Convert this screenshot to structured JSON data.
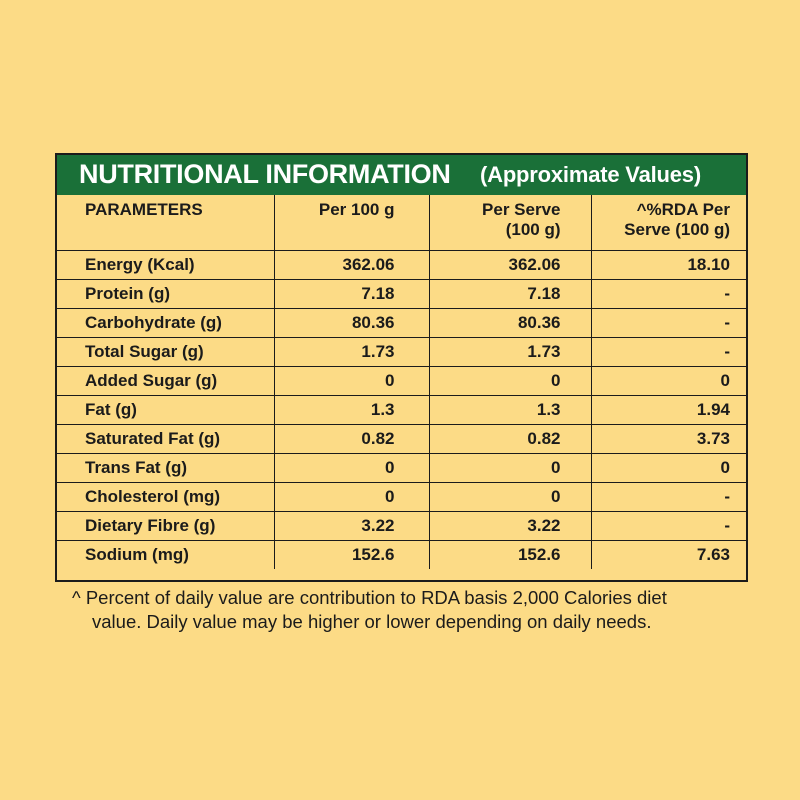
{
  "panel": {
    "title": "NUTRITIONAL INFORMATION",
    "subtitle": "(Approximate Values)"
  },
  "table": {
    "headers": {
      "parameters": "PARAMETERS",
      "per_100g": "Per 100 g",
      "per_serve_line1": "Per Serve",
      "per_serve_line2": "(100 g)",
      "rda_line1": "^%RDA Per",
      "rda_line2": "Serve (100 g)"
    },
    "rows": [
      {
        "param": "Energy (Kcal)",
        "per_100g": "362.06",
        "per_serve": "362.06",
        "rda": "18.10"
      },
      {
        "param": "Protein (g)",
        "per_100g": "7.18",
        "per_serve": "7.18",
        "rda": "-"
      },
      {
        "param": "Carbohydrate (g)",
        "per_100g": "80.36",
        "per_serve": "80.36",
        "rda": "-"
      },
      {
        "param": "Total Sugar (g)",
        "per_100g": "1.73",
        "per_serve": "1.73",
        "rda": "-"
      },
      {
        "param": "Added Sugar (g)",
        "per_100g": "0",
        "per_serve": "0",
        "rda": "0"
      },
      {
        "param": "Fat (g)",
        "per_100g": "1.3",
        "per_serve": "1.3",
        "rda": "1.94"
      },
      {
        "param": "Saturated Fat (g)",
        "per_100g": "0.82",
        "per_serve": "0.82",
        "rda": "3.73"
      },
      {
        "param": "Trans Fat (g)",
        "per_100g": "0",
        "per_serve": "0",
        "rda": "0"
      },
      {
        "param": "Cholesterol (mg)",
        "per_100g": "0",
        "per_serve": "0",
        "rda": "-"
      },
      {
        "param": "Dietary Fibre (g)",
        "per_100g": "3.22",
        "per_serve": "3.22",
        "rda": "-"
      },
      {
        "param": "Sodium (mg)",
        "per_100g": "152.6",
        "per_serve": "152.6",
        "rda": "7.63"
      }
    ]
  },
  "footnote": {
    "line1": "^ Percent of daily value are contribution to RDA basis 2,000 Calories diet",
    "line2": "value. Daily value may be higher or lower depending on daily needs."
  },
  "colors": {
    "background": "#fcdb86",
    "title_bar": "#1a7038",
    "text": "#1b1b1b"
  }
}
